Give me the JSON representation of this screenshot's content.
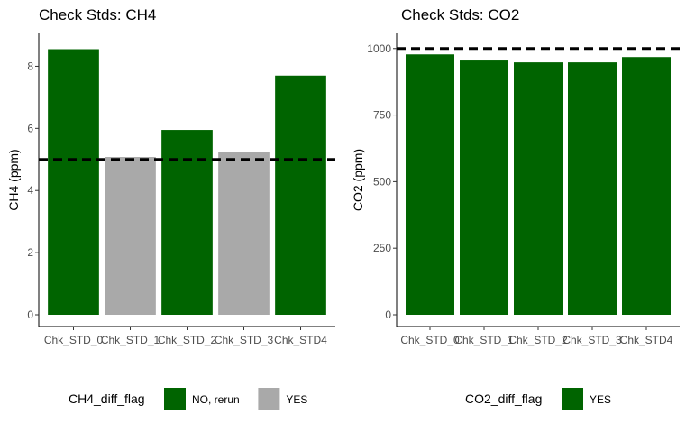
{
  "chart_data": [
    {
      "type": "bar",
      "title": "Check Stds: CH4",
      "xlabel": "",
      "ylabel": "CH4  (ppm)",
      "categories": [
        "Chk_STD_0",
        "Chk_STD_1",
        "Chk_STD_2",
        "Chk_STD_3",
        "Chk_STD4"
      ],
      "tick_labels": [
        "Chk_STD_0",
        "Chk_STD_1",
        "Chk_STD_2",
        "Chk_STD_3",
        "Chk_STD4"
      ],
      "values": [
        8.55,
        5.08,
        5.95,
        5.25,
        7.7
      ],
      "flags": [
        "NO, rerun",
        "YES",
        "NO, rerun",
        "YES",
        "NO, rerun"
      ],
      "reference_line": 5,
      "ylim": [
        0,
        9
      ],
      "yticks": [
        0,
        2,
        4,
        6,
        8
      ],
      "grid": false,
      "legend": {
        "title": "CH4_diff_flag",
        "position": "bottom",
        "entries": [
          {
            "label": "NO, rerun",
            "color": "#006400"
          },
          {
            "label": "YES",
            "color": "#A9A9A9"
          }
        ]
      }
    },
    {
      "type": "bar",
      "title": "Check Stds: CO2",
      "xlabel": "",
      "ylabel": "CO2  (ppm)",
      "categories": [
        "Chk_STD_0",
        "Chk_STD_1",
        "Chk_STD_2",
        "Chk_STD_3",
        "Chk_STD4"
      ],
      "tick_labels": [
        "Chk_STD_0",
        "Chk_STD_1",
        "Chk_STD_2",
        "Chk_STD_3",
        "Chk_STD4"
      ],
      "values": [
        978,
        955,
        948,
        948,
        968
      ],
      "flags": [
        "YES",
        "YES",
        "YES",
        "YES",
        "YES"
      ],
      "reference_line": 1000,
      "ylim": [
        0,
        1050
      ],
      "yticks": [
        0,
        250,
        500,
        750,
        1000
      ],
      "grid": false,
      "legend": {
        "title": "CO2_diff_flag",
        "position": "bottom",
        "entries": [
          {
            "label": "YES",
            "color": "#006400"
          }
        ]
      }
    }
  ]
}
